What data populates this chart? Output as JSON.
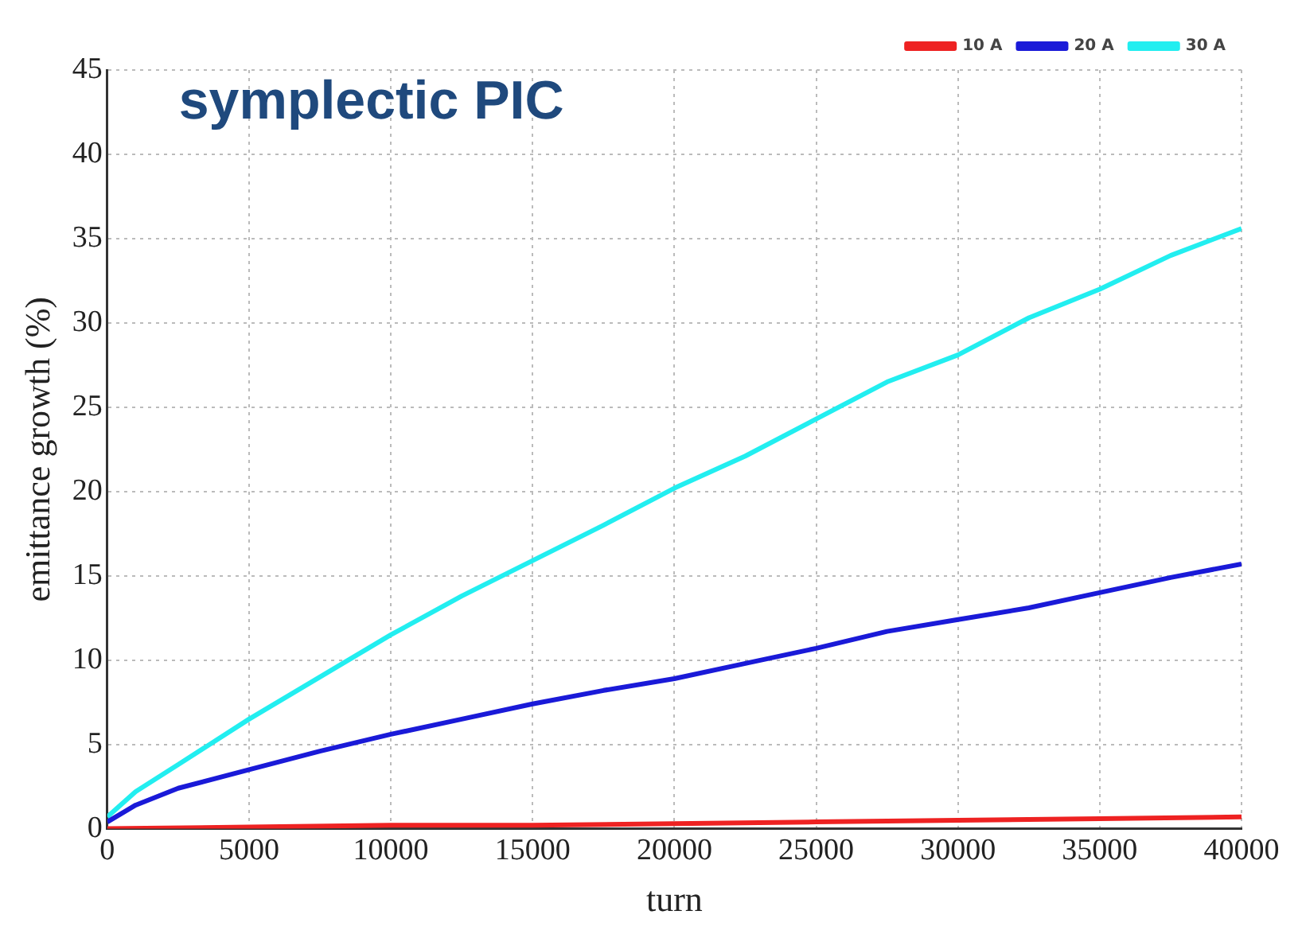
{
  "chart_data": {
    "type": "line",
    "title": "symplectic PIC",
    "xlabel": "turn",
    "ylabel": "emittance growth (%)",
    "xlim": [
      0,
      40000
    ],
    "xticks": [
      0,
      5000,
      10000,
      15000,
      20000,
      25000,
      30000,
      35000,
      40000
    ],
    "ylim": [
      0,
      45
    ],
    "yticks": [
      0,
      5,
      10,
      15,
      20,
      25,
      30,
      35,
      40,
      45
    ],
    "grid": true,
    "legend": "top right",
    "marker": "none",
    "line_style": "solid",
    "series": [
      {
        "name": "10 A",
        "color": "#ee2222",
        "x": [
          0,
          5000,
          10000,
          15000,
          20000,
          25000,
          30000,
          35000,
          40000
        ],
        "values": [
          0,
          0.1,
          0.2,
          0.2,
          0.3,
          0.4,
          0.5,
          0.6,
          0.7
        ]
      },
      {
        "name": "20 A",
        "color": "#1a1ad8",
        "x": [
          0,
          1000,
          2500,
          5000,
          7500,
          10000,
          12500,
          15000,
          17500,
          20000,
          22500,
          25000,
          27500,
          30000,
          32500,
          35000,
          37500,
          40000
        ],
        "values": [
          0.4,
          1.4,
          2.4,
          3.5,
          4.6,
          5.6,
          6.5,
          7.4,
          8.2,
          8.9,
          9.8,
          10.7,
          11.7,
          12.4,
          13.1,
          14,
          14.9,
          15.7
        ]
      },
      {
        "name": "30 A",
        "color": "#22eef0",
        "x": [
          0,
          1000,
          2500,
          5000,
          7500,
          10000,
          12500,
          15000,
          17500,
          20000,
          22500,
          25000,
          27500,
          30000,
          32500,
          35000,
          37500,
          40000
        ],
        "values": [
          0.7,
          2.2,
          3.8,
          6.5,
          9,
          11.5,
          13.8,
          15.9,
          18,
          20.2,
          22.1,
          24.3,
          26.5,
          28.1,
          30.3,
          32,
          34,
          35.6
        ]
      }
    ]
  }
}
